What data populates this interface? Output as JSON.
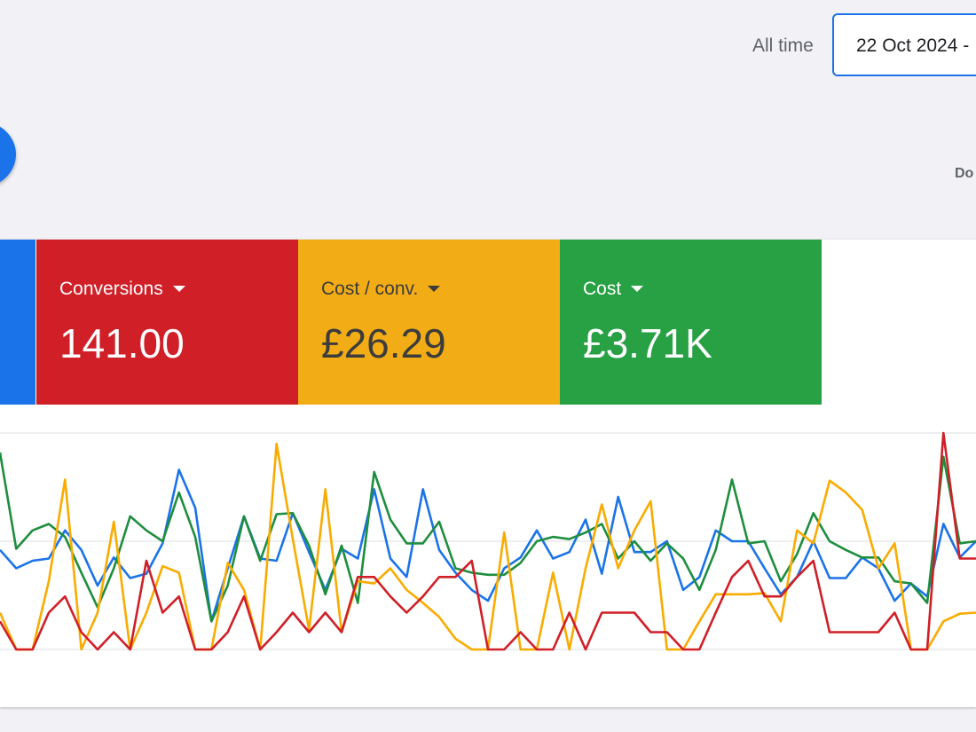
{
  "header": {
    "range_label": "All time",
    "date_range": "22 Oct 2024 -",
    "download": "Do"
  },
  "cards": [
    {
      "label": "Conversions",
      "value": "141.00",
      "color": "#d01f27",
      "text_color": "#ffffff"
    },
    {
      "label": "Cost / conv.",
      "value": "£26.29",
      "color": "#f2ac16",
      "text_color": "#3c3c3c"
    },
    {
      "label": "Cost",
      "value": "£3.71K",
      "color": "#28a044",
      "text_color": "#ffffff"
    }
  ],
  "chart_data": {
    "type": "line",
    "ylim": [
      0,
      2
    ],
    "yticks": [
      0,
      1,
      2
    ],
    "grid": true,
    "series": [
      {
        "color": "#1a73e8",
        "values": [
          0.92,
          0.75,
          0.82,
          0.84,
          1.1,
          0.92,
          0.59,
          0.85,
          0.66,
          0.7,
          0.98,
          1.66,
          1.31,
          0.26,
          0.75,
          1.23,
          0.84,
          0.82,
          1.26,
          0.9,
          0.55,
          0.93,
          0.84,
          1.48,
          0.84,
          0.67,
          1.48,
          0.92,
          0.71,
          0.55,
          0.45,
          0.75,
          0.85,
          1.1,
          0.84,
          0.9,
          1.2,
          0.7,
          1.41,
          0.9,
          0.9,
          1.0,
          0.55,
          0.67,
          1.1,
          1.0,
          1.0,
          0.75,
          0.51,
          0.67,
          1.0,
          0.66,
          0.66,
          0.85,
          0.75,
          0.45,
          0.61,
          0.49,
          1.16,
          0.85,
          1.0
        ]
      },
      {
        "color": "#1e8e3e",
        "values": [
          1.82,
          0.93,
          1.1,
          1.16,
          1.04,
          0.71,
          0.39,
          0.75,
          1.23,
          1.1,
          1.0,
          1.45,
          1.04,
          0.26,
          0.59,
          1.23,
          0.82,
          1.25,
          1.26,
          0.96,
          0.51,
          0.96,
          0.43,
          1.64,
          1.2,
          0.98,
          0.98,
          1.18,
          0.75,
          0.71,
          0.69,
          0.69,
          0.8,
          1.0,
          1.04,
          1.02,
          1.08,
          1.16,
          0.84,
          1.0,
          0.82,
          0.98,
          0.84,
          0.55,
          0.92,
          1.57,
          0.98,
          1.0,
          0.63,
          0.88,
          1.26,
          1.0,
          0.92,
          0.85,
          0.85,
          0.63,
          0.61,
          0.43,
          1.78,
          0.98,
          1.0
        ]
      },
      {
        "color": "#f9ab00",
        "values": [
          0.34,
          0,
          0,
          0.63,
          1.57,
          0,
          0.34,
          1.18,
          0,
          0.34,
          0.77,
          0.71,
          0,
          0,
          0.8,
          0.55,
          0,
          1.9,
          1.02,
          0.18,
          1.48,
          0.16,
          0.63,
          0.61,
          0.75,
          0.55,
          0.43,
          0.3,
          0.1,
          0,
          0,
          1.08,
          0,
          0,
          0.71,
          0,
          0.75,
          1.34,
          0.75,
          1.1,
          1.37,
          0,
          0,
          0.26,
          0.51,
          0.51,
          0.51,
          0.52,
          0.26,
          1.1,
          0.98,
          1.56,
          1.45,
          1.29,
          0.75,
          0.98,
          0,
          0,
          0.26,
          0.33,
          0.34
        ]
      },
      {
        "color": "#d01f27",
        "values": [
          0.26,
          0,
          0,
          0.34,
          0.49,
          0.16,
          0,
          0.16,
          0,
          0.82,
          0.34,
          0.49,
          0,
          0,
          0.16,
          0.49,
          0,
          0.16,
          0.34,
          0.16,
          0.34,
          0.16,
          0.67,
          0.67,
          0.49,
          0.34,
          0.49,
          0.67,
          0.67,
          0.82,
          0,
          0,
          0.16,
          0,
          0,
          0.34,
          0,
          0.34,
          0.34,
          0.34,
          0.16,
          0.16,
          0,
          0,
          0.34,
          0.67,
          0.82,
          0.49,
          0.49,
          0.67,
          0.82,
          0.16,
          0.16,
          0.16,
          0.16,
          0.34,
          0,
          0,
          2,
          0.84,
          0.84
        ]
      }
    ]
  }
}
